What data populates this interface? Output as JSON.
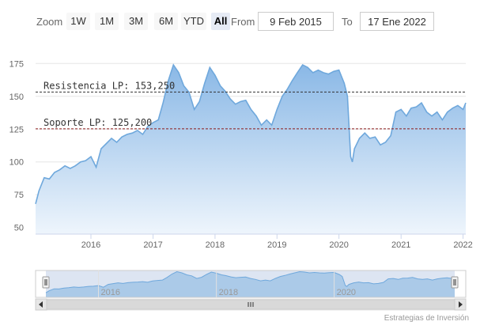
{
  "toolbar": {
    "zoom_label": "Zoom",
    "buttons": [
      "1W",
      "1M",
      "3M",
      "6M",
      "YTD",
      "All"
    ],
    "selected": "All",
    "from_label": "From",
    "from_value": "9 Feb 2015",
    "to_label": "To",
    "to_value": "17 Ene 2022"
  },
  "colors": {
    "line": "#6fa8dc",
    "fill_top": "#8ab8e6",
    "fill_bottom": "#eef5fc",
    "resistance": "#333333",
    "support": "#8b1a1a",
    "navigator_mask": "#c7d3ea"
  },
  "chart_data": {
    "type": "area",
    "title": "",
    "xlabel": "",
    "ylabel": "",
    "ylim": [
      45,
      180
    ],
    "yticks": [
      50,
      75,
      100,
      125,
      150,
      175
    ],
    "xticks": [
      "2016",
      "2017",
      "2018",
      "2019",
      "2020",
      "2021",
      "2022"
    ],
    "xlim": [
      "2015-02-09",
      "2022-01-17"
    ],
    "grid": "horizontal",
    "series": [
      {
        "values": [
          [
            "2015-02-09",
            68
          ],
          [
            "2015-03-01",
            78
          ],
          [
            "2015-04-01",
            88
          ],
          [
            "2015-05-01",
            87
          ],
          [
            "2015-06-01",
            92
          ],
          [
            "2015-07-01",
            94
          ],
          [
            "2015-08-01",
            97
          ],
          [
            "2015-09-01",
            95
          ],
          [
            "2015-10-01",
            97
          ],
          [
            "2015-11-01",
            100
          ],
          [
            "2015-12-01",
            101
          ],
          [
            "2016-01-01",
            104
          ],
          [
            "2016-02-01",
            96
          ],
          [
            "2016-03-01",
            110
          ],
          [
            "2016-04-01",
            114
          ],
          [
            "2016-05-01",
            118
          ],
          [
            "2016-06-01",
            115
          ],
          [
            "2016-07-01",
            119
          ],
          [
            "2016-08-01",
            121
          ],
          [
            "2016-09-01",
            122
          ],
          [
            "2016-10-01",
            124
          ],
          [
            "2016-11-01",
            121
          ],
          [
            "2016-12-01",
            127
          ],
          [
            "2017-01-01",
            130
          ],
          [
            "2017-02-01",
            132
          ],
          [
            "2017-03-01",
            145
          ],
          [
            "2017-04-01",
            162
          ],
          [
            "2017-05-01",
            174
          ],
          [
            "2017-06-01",
            168
          ],
          [
            "2017-07-01",
            158
          ],
          [
            "2017-08-01",
            153
          ],
          [
            "2017-09-01",
            140
          ],
          [
            "2017-10-01",
            146
          ],
          [
            "2017-11-01",
            160
          ],
          [
            "2017-12-01",
            172
          ],
          [
            "2018-01-01",
            166
          ],
          [
            "2018-02-01",
            158
          ],
          [
            "2018-03-01",
            154
          ],
          [
            "2018-04-01",
            148
          ],
          [
            "2018-05-01",
            144
          ],
          [
            "2018-06-01",
            146
          ],
          [
            "2018-07-01",
            147
          ],
          [
            "2018-08-01",
            140
          ],
          [
            "2018-09-01",
            135
          ],
          [
            "2018-10-01",
            128
          ],
          [
            "2018-11-01",
            132
          ],
          [
            "2018-12-01",
            128
          ],
          [
            "2019-01-01",
            140
          ],
          [
            "2019-02-01",
            150
          ],
          [
            "2019-03-01",
            155
          ],
          [
            "2019-04-01",
            162
          ],
          [
            "2019-05-01",
            168
          ],
          [
            "2019-06-01",
            174
          ],
          [
            "2019-07-01",
            172
          ],
          [
            "2019-08-01",
            168
          ],
          [
            "2019-09-01",
            170
          ],
          [
            "2019-10-01",
            168
          ],
          [
            "2019-11-01",
            167
          ],
          [
            "2019-12-01",
            169
          ],
          [
            "2020-01-01",
            170
          ],
          [
            "2020-02-01",
            160
          ],
          [
            "2020-02-20",
            150
          ],
          [
            "2020-03-10",
            104
          ],
          [
            "2020-03-20",
            100
          ],
          [
            "2020-04-01",
            110
          ],
          [
            "2020-05-01",
            118
          ],
          [
            "2020-06-01",
            122
          ],
          [
            "2020-07-01",
            118
          ],
          [
            "2020-08-01",
            119
          ],
          [
            "2020-09-01",
            113
          ],
          [
            "2020-10-01",
            115
          ],
          [
            "2020-11-01",
            120
          ],
          [
            "2020-12-01",
            138
          ],
          [
            "2021-01-01",
            140
          ],
          [
            "2021-02-01",
            135
          ],
          [
            "2021-03-01",
            141
          ],
          [
            "2021-04-01",
            142
          ],
          [
            "2021-05-01",
            145
          ],
          [
            "2021-06-01",
            138
          ],
          [
            "2021-07-01",
            135
          ],
          [
            "2021-08-01",
            138
          ],
          [
            "2021-09-01",
            132
          ],
          [
            "2021-10-01",
            138
          ],
          [
            "2021-11-01",
            141
          ],
          [
            "2021-12-01",
            143
          ],
          [
            "2022-01-01",
            140
          ],
          [
            "2022-01-17",
            145
          ]
        ]
      }
    ],
    "annotations": [
      {
        "label": "Resistencia LP: 153,250",
        "value": 153.25,
        "style": "dashed"
      },
      {
        "label": "Soporte LP: 125,200",
        "value": 125.2,
        "style": "dashed"
      }
    ],
    "navigator": {
      "xticks": [
        "2016",
        "2018",
        "2020"
      ]
    }
  },
  "credits": "Estrategias de Inversión"
}
